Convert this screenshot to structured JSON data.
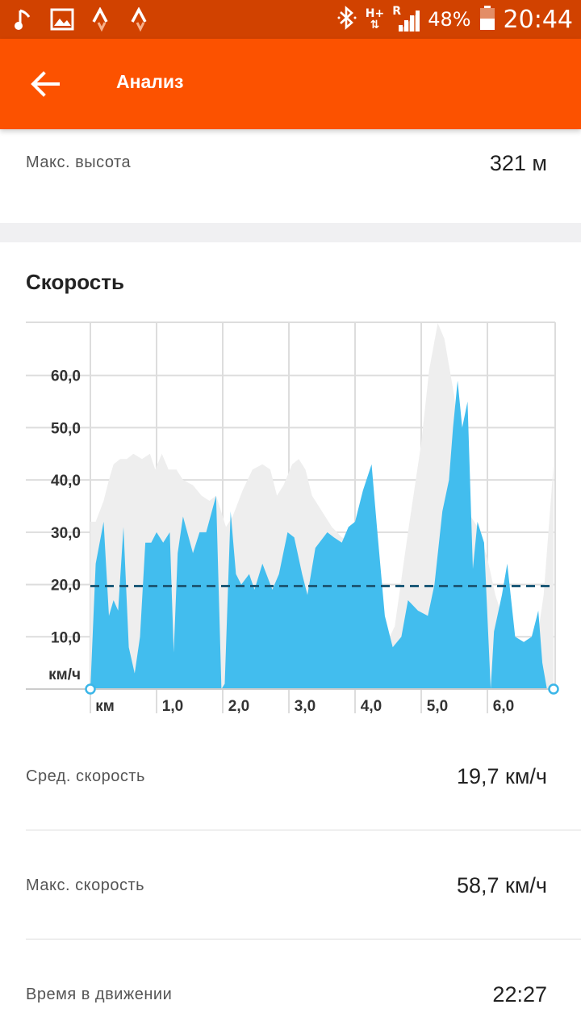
{
  "status_bar": {
    "icons_left": [
      "music-note-icon",
      "image-icon",
      "strava-icon",
      "strava-icon"
    ],
    "network_top": "H+",
    "network_roaming": "R",
    "battery_percent": "48%",
    "time": "20:44"
  },
  "app_bar": {
    "title": "Анализ",
    "back_icon": "arrow-back-icon"
  },
  "elevation": {
    "max_label": "Макс. высота",
    "max_value": "321 м"
  },
  "speed": {
    "title": "Скорость",
    "avg_label": "Сред. скорость",
    "avg_value": "19,7 км/ч",
    "max_label": "Макс. скорость",
    "max_value": "58,7 км/ч",
    "moving_label": "Время в движении",
    "moving_value": "22:27"
  },
  "colors": {
    "accent": "#fc5200",
    "status_bar": "#d14200",
    "speed_fill": "#42bdee",
    "elevation_fill": "#eeeeee",
    "average_line": "#1d5a78"
  },
  "chart_data": {
    "type": "area",
    "x_unit_label": "км",
    "y_unit_label": "км/ч",
    "x_ticks": [
      "1,0",
      "2,0",
      "3,0",
      "4,0",
      "5,0",
      "6,0"
    ],
    "y_ticks": [
      "10,0",
      "20,0",
      "30,0",
      "40,0",
      "50,0",
      "60,0"
    ],
    "xlim": [
      0,
      7.0
    ],
    "ylim": [
      0,
      70
    ],
    "average_speed": 19.7,
    "grid": true,
    "speed": {
      "x": [
        0,
        0.08,
        0.2,
        0.28,
        0.35,
        0.42,
        0.5,
        0.58,
        0.67,
        0.75,
        0.83,
        0.92,
        1.0,
        1.1,
        1.2,
        1.26,
        1.32,
        1.4,
        1.55,
        1.65,
        1.75,
        1.9,
        1.98,
        2.03,
        2.12,
        2.2,
        2.28,
        2.4,
        2.48,
        2.6,
        2.75,
        2.85,
        2.98,
        3.08,
        3.2,
        3.28,
        3.4,
        3.58,
        3.68,
        3.8,
        3.9,
        4.0,
        4.12,
        4.25,
        4.33,
        4.45,
        4.57,
        4.7,
        4.8,
        4.95,
        5.1,
        5.2,
        5.32,
        5.42,
        5.48,
        5.55,
        5.62,
        5.7,
        5.78,
        5.85,
        5.95,
        6.05,
        6.1,
        6.22,
        6.3,
        6.42,
        6.55,
        6.67,
        6.77,
        6.83,
        6.9,
        7.0
      ],
      "y": [
        0,
        24,
        32,
        14,
        17,
        15,
        31,
        8,
        3,
        10,
        28,
        28,
        30,
        28,
        30,
        7,
        26,
        33,
        26,
        30,
        30,
        37,
        0,
        1,
        34,
        22,
        20,
        22,
        19,
        24,
        19,
        22,
        30,
        29,
        22,
        18,
        27,
        30,
        29,
        28,
        31,
        32,
        38,
        43,
        31,
        14,
        8,
        10,
        17,
        15,
        14,
        20,
        34,
        40,
        50,
        59,
        50,
        55,
        23,
        32,
        28,
        0,
        11,
        18,
        24,
        10,
        9,
        10,
        15,
        5,
        0,
        0
      ],
      "name": ""
    },
    "elevation_shape": {
      "x": [
        0,
        0.08,
        0.2,
        0.28,
        0.35,
        0.45,
        0.55,
        0.65,
        0.78,
        0.9,
        0.98,
        1.08,
        1.18,
        1.3,
        1.4,
        1.55,
        1.68,
        1.8,
        1.9,
        2.05,
        2.15,
        2.3,
        2.45,
        2.6,
        2.72,
        2.82,
        2.92,
        3.05,
        3.15,
        3.25,
        3.35,
        3.5,
        3.65,
        3.8,
        4.0,
        4.12,
        4.25,
        4.35,
        4.45,
        4.6,
        4.8,
        5.0,
        5.12,
        5.25,
        5.35,
        5.5,
        5.62,
        5.75,
        5.85,
        6.0,
        6.12,
        6.25,
        6.4,
        6.55,
        6.7,
        6.85,
        7.0
      ],
      "y": [
        32,
        32,
        36,
        40,
        43,
        44,
        44,
        45,
        44,
        45,
        42,
        45,
        42,
        42,
        40,
        39,
        37,
        36,
        37,
        31,
        33,
        38,
        42,
        43,
        42,
        37,
        39,
        43,
        44,
        42,
        37,
        34,
        31,
        29,
        28,
        24,
        20,
        12,
        8,
        12,
        30,
        47,
        61,
        70,
        67,
        56,
        41,
        33,
        31,
        25,
        18,
        13,
        5,
        2,
        5,
        18,
        43
      ]
    }
  }
}
